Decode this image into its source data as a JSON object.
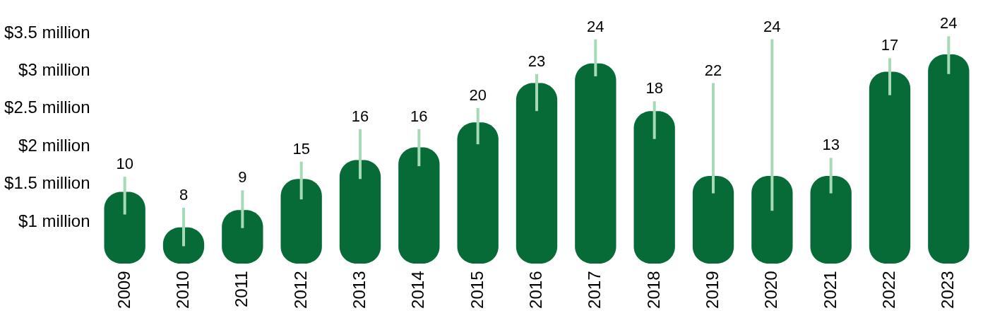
{
  "chart_data": {
    "type": "bar",
    "categories": [
      "2009",
      "2010",
      "2011",
      "2012",
      "2013",
      "2014",
      "2015",
      "2016",
      "2017",
      "2018",
      "2019",
      "2020",
      "2021",
      "2022",
      "2023"
    ],
    "series": [
      {
        "color": "#066b37",
        "values": [
          1.39,
          0.92,
          1.15,
          1.56,
          1.81,
          1.98,
          2.31,
          2.83,
          3.09,
          2.46,
          1.6,
          1.6,
          1.6,
          2.98,
          3.21
        ],
        "errors": [
          [
            1.09,
            1.59
          ],
          [
            0.67,
            1.18
          ],
          [
            0.91,
            1.41
          ],
          [
            1.29,
            1.79
          ],
          [
            1.56,
            2.22
          ],
          [
            1.73,
            2.22
          ],
          [
            2.02,
            2.5
          ],
          [
            2.46,
            2.95
          ],
          [
            2.92,
            3.41
          ],
          [
            2.09,
            2.59
          ],
          [
            1.37,
            2.83
          ],
          [
            1.14,
            3.41
          ],
          [
            1.37,
            1.84
          ],
          [
            2.67,
            3.16
          ],
          [
            2.95,
            3.45
          ]
        ]
      }
    ],
    "ylim": [
      0.44,
      3.5
    ],
    "yticks": [
      {
        "value": 1,
        "label": "$1 million"
      },
      {
        "value": 1.5,
        "label": "$1.5 million"
      },
      {
        "value": 2,
        "label": "$2 million"
      },
      {
        "value": 2.5,
        "label": "$2.5 million"
      },
      {
        "value": 3,
        "label": "$3 million"
      },
      {
        "value": 3.5,
        "label": "$3.5 million"
      }
    ],
    "grid": false,
    "annotations": [
      {
        "text": "10",
        "x": "2009",
        "y": 1.59
      },
      {
        "text": "8",
        "x": "2010",
        "y": 1.18
      },
      {
        "text": "9",
        "x": "2011",
        "y": 1.41
      },
      {
        "text": "15",
        "x": "2012",
        "y": 1.79
      },
      {
        "text": "16",
        "x": "2013",
        "y": 2.22
      },
      {
        "text": "16",
        "x": "2014",
        "y": 2.22
      },
      {
        "text": "20",
        "x": "2015",
        "y": 2.5
      },
      {
        "text": "23",
        "x": "2016",
        "y": 2.95
      },
      {
        "text": "24",
        "x": "2017",
        "y": 3.41
      },
      {
        "text": "18",
        "x": "2018",
        "y": 2.59
      },
      {
        "text": "22",
        "x": "2019",
        "y": 2.83
      },
      {
        "text": "24",
        "x": "2020",
        "y": 3.41
      },
      {
        "text": "13",
        "x": "2021",
        "y": 1.84
      },
      {
        "text": "17",
        "x": "2022",
        "y": 3.16
      },
      {
        "text": "24",
        "x": "2023",
        "y": 3.45
      }
    ]
  }
}
